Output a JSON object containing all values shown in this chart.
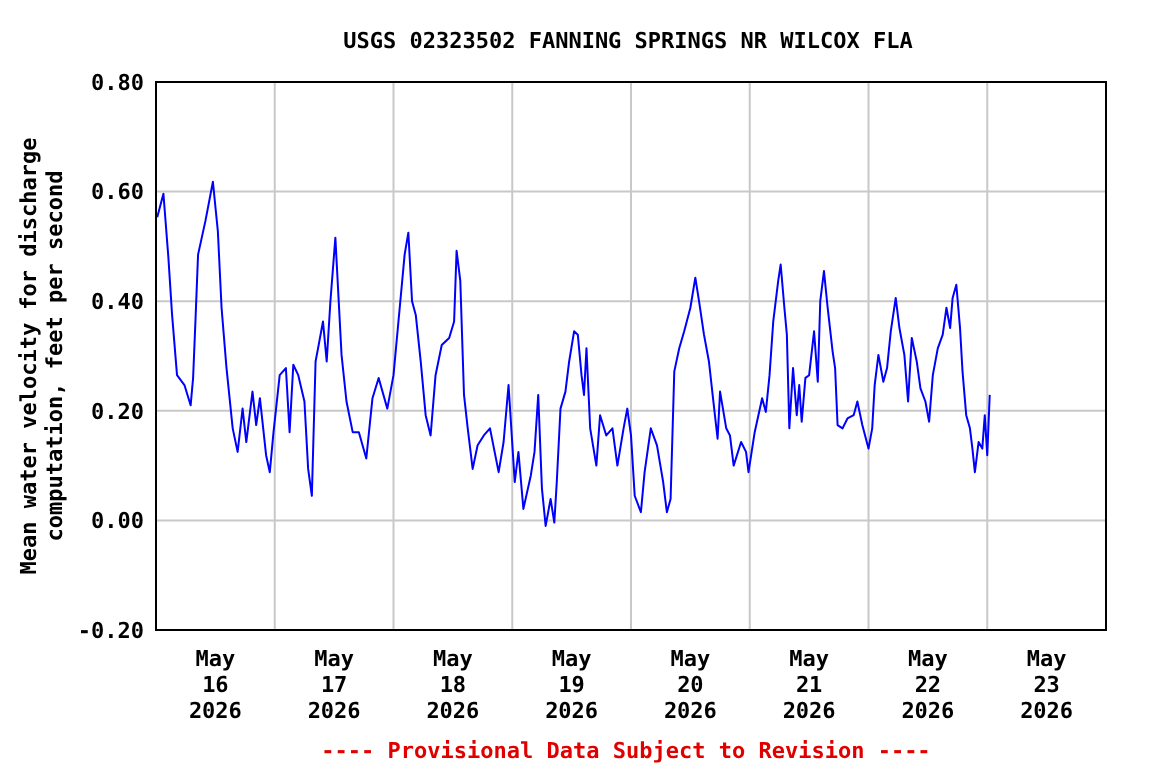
{
  "chart_data": {
    "type": "line",
    "title": "USGS 02323502 FANNING SPRINGS NR WILCOX FLA",
    "ylabel": "Mean water velocity for discharge\ncomputation, feet per second",
    "annotations": [
      "---- Provisional Data Subject to Revision ----"
    ],
    "xlim": [
      "2026-05-16T00:00",
      "2026-05-24T00:00"
    ],
    "xticks": [
      {
        "value": "2026-05-16T00:00",
        "label": null
      },
      {
        "value": "2026-05-16T12:00",
        "label": "May\n16\n2026"
      },
      {
        "value": "2026-05-17T00:00",
        "label": null
      },
      {
        "value": "2026-05-17T12:00",
        "label": "May\n17\n2026"
      },
      {
        "value": "2026-05-18T00:00",
        "label": null
      },
      {
        "value": "2026-05-18T12:00",
        "label": "May\n18\n2026"
      },
      {
        "value": "2026-05-19T00:00",
        "label": null
      },
      {
        "value": "2026-05-19T12:00",
        "label": "May\n19\n2026"
      },
      {
        "value": "2026-05-20T00:00",
        "label": null
      },
      {
        "value": "2026-05-20T12:00",
        "label": "May\n20\n2026"
      },
      {
        "value": "2026-05-21T00:00",
        "label": null
      },
      {
        "value": "2026-05-21T12:00",
        "label": "May\n21\n2026"
      },
      {
        "value": "2026-05-22T00:00",
        "label": null
      },
      {
        "value": "2026-05-22T12:00",
        "label": "May\n22\n2026"
      },
      {
        "value": "2026-05-23T00:00",
        "label": null
      },
      {
        "value": "2026-05-23T12:00",
        "label": "May\n23\n2026"
      },
      {
        "value": "2026-05-24T00:00",
        "label": null
      }
    ],
    "ylim": [
      -0.2,
      0.8
    ],
    "yticks": [
      {
        "value": -0.2,
        "label": "-0.20"
      },
      {
        "value": 0,
        "label": "0.00"
      },
      {
        "value": 0.2,
        "label": "0.20"
      },
      {
        "value": 0.4,
        "label": "0.40"
      },
      {
        "value": 0.6,
        "label": "0.60"
      },
      {
        "value": 0.8,
        "label": "0.80"
      }
    ],
    "grid": true,
    "series": [
      {
        "color": "#0000ff",
        "x": [
          "2026-05-16T00:15",
          "2026-05-16T01:30",
          "2026-05-16T02:30",
          "2026-05-16T03:15",
          "2026-05-16T04:15",
          "2026-05-16T05:45",
          "2026-05-16T07:00",
          "2026-05-16T07:30",
          "2026-05-16T08:00",
          "2026-05-16T08:30",
          "2026-05-16T10:00",
          "2026-05-16T11:30",
          "2026-05-16T12:30",
          "2026-05-16T13:15",
          "2026-05-16T14:15",
          "2026-05-16T15:30",
          "2026-05-16T16:30",
          "2026-05-16T17:30",
          "2026-05-16T18:15",
          "2026-05-16T19:30",
          "2026-05-16T20:15",
          "2026-05-16T21:00",
          "2026-05-16T22:15",
          "2026-05-16T23:00",
          "2026-05-16T23:45",
          "2026-05-17T01:00",
          "2026-05-17T02:15",
          "2026-05-17T03:00",
          "2026-05-17T03:45",
          "2026-05-17T04:45",
          "2026-05-17T06:00",
          "2026-05-17T06:45",
          "2026-05-17T07:30",
          "2026-05-17T08:15",
          "2026-05-17T08:45",
          "2026-05-17T09:45",
          "2026-05-17T10:30",
          "2026-05-17T11:15",
          "2026-05-17T12:15",
          "2026-05-17T13:30",
          "2026-05-17T14:30",
          "2026-05-17T15:45",
          "2026-05-17T17:00",
          "2026-05-17T18:30",
          "2026-05-17T19:45",
          "2026-05-17T21:00",
          "2026-05-17T22:45",
          "2026-05-18T00:00",
          "2026-05-18T01:00",
          "2026-05-18T02:15",
          "2026-05-18T03:00",
          "2026-05-18T03:45",
          "2026-05-18T04:30",
          "2026-05-18T05:30",
          "2026-05-18T06:30",
          "2026-05-18T07:30",
          "2026-05-18T08:30",
          "2026-05-18T09:45",
          "2026-05-18T11:15",
          "2026-05-18T12:15",
          "2026-05-18T12:45",
          "2026-05-18T13:30",
          "2026-05-18T14:15",
          "2026-05-18T15:00",
          "2026-05-18T16:00",
          "2026-05-18T17:00",
          "2026-05-18T18:15",
          "2026-05-18T19:30",
          "2026-05-18T21:15",
          "2026-05-18T22:15",
          "2026-05-18T23:15",
          "2026-05-19T00:30",
          "2026-05-19T01:15",
          "2026-05-19T02:15",
          "2026-05-19T03:45",
          "2026-05-19T04:30",
          "2026-05-19T05:15",
          "2026-05-19T06:00",
          "2026-05-19T06:45",
          "2026-05-19T07:45",
          "2026-05-19T08:30",
          "2026-05-19T09:00",
          "2026-05-19T09:45",
          "2026-05-19T10:45",
          "2026-05-19T11:30",
          "2026-05-19T12:30",
          "2026-05-19T13:15",
          "2026-05-19T14:00",
          "2026-05-19T14:30",
          "2026-05-19T15:00",
          "2026-05-19T15:45",
          "2026-05-19T17:00",
          "2026-05-19T17:45",
          "2026-05-19T19:00",
          "2026-05-19T20:15",
          "2026-05-19T21:15",
          "2026-05-19T22:30",
          "2026-05-19T23:15",
          "2026-05-20T00:00",
          "2026-05-20T00:45",
          "2026-05-20T02:00",
          "2026-05-20T02:45",
          "2026-05-20T04:00",
          "2026-05-20T05:15",
          "2026-05-20T06:30",
          "2026-05-20T07:15",
          "2026-05-20T08:00",
          "2026-05-20T08:45",
          "2026-05-20T09:45",
          "2026-05-20T10:45",
          "2026-05-20T12:00",
          "2026-05-20T13:00",
          "2026-05-20T13:45",
          "2026-05-20T14:45",
          "2026-05-20T15:45",
          "2026-05-20T16:30",
          "2026-05-20T17:30",
          "2026-05-20T18:00",
          "2026-05-20T19:15",
          "2026-05-20T20:00",
          "2026-05-20T20:45",
          "2026-05-20T22:15",
          "2026-05-20T23:15",
          "2026-05-20T23:45",
          "2026-05-21T01:00",
          "2026-05-21T02:30",
          "2026-05-21T03:15",
          "2026-05-21T04:00",
          "2026-05-21T04:45",
          "2026-05-21T05:45",
          "2026-05-21T06:15",
          "2026-05-21T07:00",
          "2026-05-21T07:30",
          "2026-05-21T08:00",
          "2026-05-21T08:45",
          "2026-05-21T09:30",
          "2026-05-21T10:00",
          "2026-05-21T10:30",
          "2026-05-21T11:15",
          "2026-05-21T12:00",
          "2026-05-21T13:00",
          "2026-05-21T13:45",
          "2026-05-21T14:15",
          "2026-05-21T15:00",
          "2026-05-21T15:45",
          "2026-05-21T16:45",
          "2026-05-21T17:15",
          "2026-05-21T17:45",
          "2026-05-21T18:45",
          "2026-05-21T19:45",
          "2026-05-21T21:00",
          "2026-05-21T21:45",
          "2026-05-21T22:45",
          "2026-05-22T00:00",
          "2026-05-22T00:45",
          "2026-05-22T01:15",
          "2026-05-22T02:00",
          "2026-05-22T03:00",
          "2026-05-22T03:45",
          "2026-05-22T04:30",
          "2026-05-22T05:30",
          "2026-05-22T06:15",
          "2026-05-22T07:15",
          "2026-05-22T08:00",
          "2026-05-22T08:45",
          "2026-05-22T09:45",
          "2026-05-22T10:30",
          "2026-05-22T11:30",
          "2026-05-22T12:15",
          "2026-05-22T13:00",
          "2026-05-22T14:00",
          "2026-05-22T15:00",
          "2026-05-22T15:45",
          "2026-05-22T16:30",
          "2026-05-22T17:00",
          "2026-05-22T17:45",
          "2026-05-22T18:30",
          "2026-05-22T19:00",
          "2026-05-22T19:45",
          "2026-05-22T20:30",
          "2026-05-22T21:00",
          "2026-05-22T21:30",
          "2026-05-22T22:15",
          "2026-05-22T23:00",
          "2026-05-22T23:30",
          "2026-05-23T00:00",
          "2026-05-23T00:30"
        ],
        "values": [
          0.553,
          0.596,
          0.48,
          0.375,
          0.265,
          0.247,
          0.21,
          0.26,
          0.37,
          0.485,
          0.547,
          0.618,
          0.528,
          0.388,
          0.278,
          0.168,
          0.125,
          0.204,
          0.143,
          0.235,
          0.174,
          0.223,
          0.119,
          0.088,
          0.161,
          0.265,
          0.278,
          0.161,
          0.284,
          0.265,
          0.217,
          0.094,
          0.045,
          0.29,
          0.314,
          0.363,
          0.29,
          0.4,
          0.516,
          0.302,
          0.217,
          0.161,
          0.161,
          0.113,
          0.223,
          0.26,
          0.204,
          0.265,
          0.363,
          0.485,
          0.525,
          0.4,
          0.375,
          0.29,
          0.192,
          0.155,
          0.265,
          0.32,
          0.333,
          0.363,
          0.492,
          0.437,
          0.229,
          0.168,
          0.094,
          0.137,
          0.155,
          0.168,
          0.088,
          0.143,
          0.247,
          0.07,
          0.125,
          0.021,
          0.082,
          0.125,
          0.229,
          0.058,
          -0.01,
          0.039,
          -0.004,
          0.07,
          0.204,
          0.235,
          0.29,
          0.345,
          0.339,
          0.265,
          0.229,
          0.314,
          0.168,
          0.1,
          0.192,
          0.155,
          0.168,
          0.1,
          0.168,
          0.204,
          0.155,
          0.045,
          0.015,
          0.088,
          0.168,
          0.137,
          0.07,
          0.015,
          0.039,
          0.272,
          0.314,
          0.345,
          0.388,
          0.443,
          0.4,
          0.339,
          0.29,
          0.229,
          0.149,
          0.235,
          0.168,
          0.155,
          0.1,
          0.143,
          0.125,
          0.088,
          0.161,
          0.223,
          0.198,
          0.265,
          0.363,
          0.437,
          0.467,
          0.388,
          0.339,
          0.168,
          0.278,
          0.192,
          0.247,
          0.18,
          0.26,
          0.265,
          0.345,
          0.253,
          0.4,
          0.455,
          0.388,
          0.308,
          0.278,
          0.174,
          0.168,
          0.186,
          0.192,
          0.217,
          0.174,
          0.131,
          0.168,
          0.247,
          0.302,
          0.253,
          0.278,
          0.345,
          0.406,
          0.351,
          0.302,
          0.217,
          0.333,
          0.29,
          0.241,
          0.217,
          0.18,
          0.265,
          0.314,
          0.339,
          0.388,
          0.351,
          0.406,
          0.43,
          0.351,
          0.272,
          0.192,
          0.168,
          0.131,
          0.088,
          0.143,
          0.131,
          0.192,
          0.119,
          0.229
        ]
      }
    ]
  }
}
